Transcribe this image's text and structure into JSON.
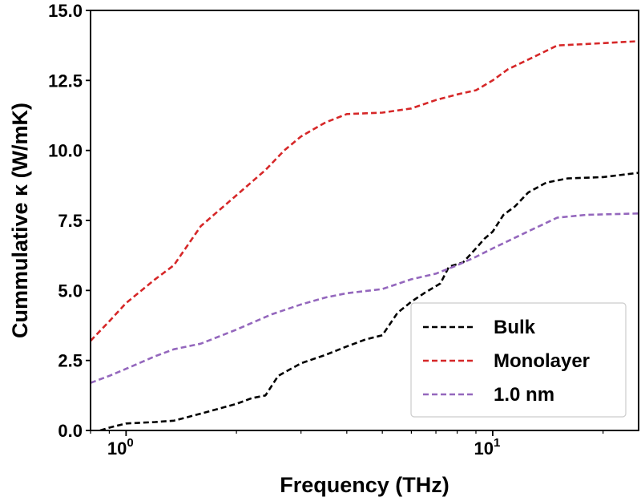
{
  "chart_data": {
    "type": "line",
    "xlabel": "Frequency (THz)",
    "ylabel": "Cummulative κ (W/mK)",
    "xscale": "log",
    "xlim": [
      0.8,
      25
    ],
    "ylim": [
      0,
      15
    ],
    "xticks": [
      {
        "value": 1,
        "label": "10",
        "exp": "0"
      },
      {
        "value": 10,
        "label": "10",
        "exp": "1"
      }
    ],
    "yticks": [
      {
        "value": 0,
        "label": "0.0"
      },
      {
        "value": 2.5,
        "label": "2.5"
      },
      {
        "value": 5,
        "label": "5.0"
      },
      {
        "value": 7.5,
        "label": "7.5"
      },
      {
        "value": 10,
        "label": "10.0"
      },
      {
        "value": 12.5,
        "label": "12.5"
      },
      {
        "value": 15,
        "label": "15.0"
      }
    ],
    "legend_position": "lower-right",
    "grid": false,
    "series": [
      {
        "name": "Bulk",
        "color": "#000000",
        "style": "dashed",
        "points": [
          [
            0.85,
            0.0
          ],
          [
            0.9,
            0.1
          ],
          [
            1.0,
            0.25
          ],
          [
            1.2,
            0.3
          ],
          [
            1.35,
            0.35
          ],
          [
            1.6,
            0.6
          ],
          [
            2.0,
            0.95
          ],
          [
            2.2,
            1.15
          ],
          [
            2.4,
            1.25
          ],
          [
            2.6,
            1.95
          ],
          [
            3.0,
            2.4
          ],
          [
            3.5,
            2.7
          ],
          [
            4.0,
            3.0
          ],
          [
            4.5,
            3.25
          ],
          [
            5.0,
            3.4
          ],
          [
            5.5,
            4.2
          ],
          [
            6.0,
            4.6
          ],
          [
            6.5,
            4.9
          ],
          [
            7.2,
            5.25
          ],
          [
            7.6,
            5.85
          ],
          [
            8.3,
            6.0
          ],
          [
            9.0,
            6.5
          ],
          [
            9.5,
            6.85
          ],
          [
            10.0,
            7.1
          ],
          [
            10.7,
            7.7
          ],
          [
            11.5,
            8.0
          ],
          [
            12.5,
            8.5
          ],
          [
            14.0,
            8.85
          ],
          [
            16.0,
            9.0
          ],
          [
            20.0,
            9.05
          ],
          [
            25.0,
            9.2
          ]
        ]
      },
      {
        "name": "Monolayer",
        "color": "#d62728",
        "style": "dashed",
        "points": [
          [
            0.8,
            3.2
          ],
          [
            0.9,
            3.9
          ],
          [
            1.0,
            4.55
          ],
          [
            1.2,
            5.4
          ],
          [
            1.35,
            5.9
          ],
          [
            1.6,
            7.3
          ],
          [
            2.0,
            8.4
          ],
          [
            2.4,
            9.3
          ],
          [
            2.7,
            10.0
          ],
          [
            3.0,
            10.5
          ],
          [
            3.5,
            11.0
          ],
          [
            4.0,
            11.3
          ],
          [
            5.0,
            11.35
          ],
          [
            6.0,
            11.5
          ],
          [
            7.0,
            11.8
          ],
          [
            8.0,
            12.0
          ],
          [
            9.0,
            12.15
          ],
          [
            10.0,
            12.5
          ],
          [
            11.0,
            12.9
          ],
          [
            13.0,
            13.35
          ],
          [
            15.0,
            13.75
          ],
          [
            18.0,
            13.8
          ],
          [
            25.0,
            13.9
          ]
        ]
      },
      {
        "name": "1.0 nm",
        "color": "#9467bd",
        "style": "dashed",
        "points": [
          [
            0.8,
            1.7
          ],
          [
            0.9,
            1.95
          ],
          [
            1.0,
            2.2
          ],
          [
            1.2,
            2.65
          ],
          [
            1.35,
            2.9
          ],
          [
            1.6,
            3.1
          ],
          [
            2.0,
            3.6
          ],
          [
            2.5,
            4.15
          ],
          [
            3.0,
            4.5
          ],
          [
            3.5,
            4.75
          ],
          [
            4.0,
            4.9
          ],
          [
            5.0,
            5.05
          ],
          [
            6.0,
            5.4
          ],
          [
            7.0,
            5.6
          ],
          [
            8.0,
            5.9
          ],
          [
            9.0,
            6.2
          ],
          [
            10.0,
            6.5
          ],
          [
            12.0,
            7.0
          ],
          [
            15.0,
            7.6
          ],
          [
            18.0,
            7.7
          ],
          [
            25.0,
            7.75
          ]
        ]
      }
    ]
  }
}
